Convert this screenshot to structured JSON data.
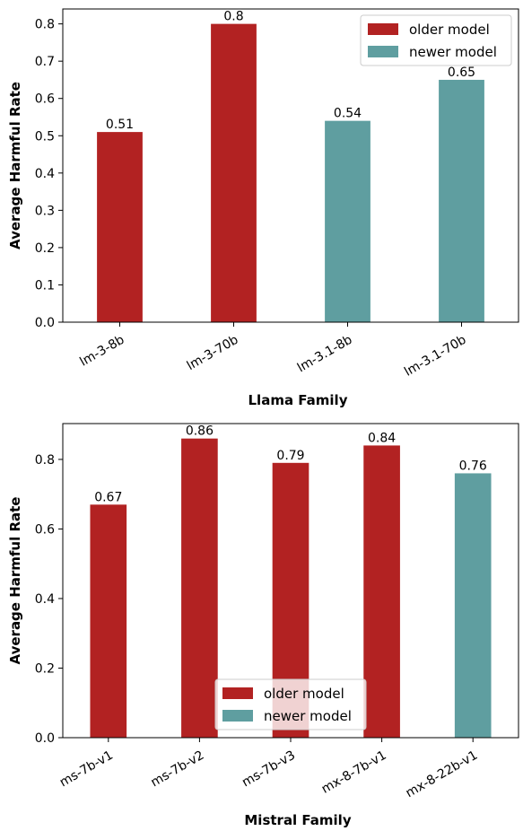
{
  "colors": {
    "older": "#b22222",
    "newer": "#5f9ea0"
  },
  "chart_data": [
    {
      "type": "bar",
      "categories": [
        "lm-3-8b",
        "lm-3-70b",
        "lm-3.1-8b",
        "lm-3.1-70b"
      ],
      "values": [
        0.51,
        0.8,
        0.54,
        0.65
      ],
      "value_labels": [
        "0.51",
        "0.8",
        "0.54",
        "0.65"
      ],
      "groups": [
        "older",
        "older",
        "newer",
        "newer"
      ],
      "ylabel": "Average Harmful Rate",
      "xlabel": "Llama Family",
      "ylim": [
        0,
        0.84
      ],
      "yticks": [
        "0.0",
        "0.1",
        "0.2",
        "0.3",
        "0.4",
        "0.5",
        "0.6",
        "0.7",
        "0.8"
      ],
      "legend": {
        "placement": "top-right",
        "entries": [
          "older model",
          "newer model"
        ]
      }
    },
    {
      "type": "bar",
      "categories": [
        "ms-7b-v1",
        "ms-7b-v2",
        "ms-7b-v3",
        "mx-8-7b-v1",
        "mx-8-22b-v1"
      ],
      "values": [
        0.67,
        0.86,
        0.79,
        0.84,
        0.76
      ],
      "value_labels": [
        "0.67",
        "0.86",
        "0.79",
        "0.84",
        "0.76"
      ],
      "groups": [
        "older",
        "older",
        "older",
        "older",
        "newer"
      ],
      "ylabel": "Average Harmful Rate",
      "xlabel": "Mistral Family",
      "ylim": [
        0,
        0.903
      ],
      "yticks": [
        "0.0",
        "0.2",
        "0.4",
        "0.6",
        "0.8"
      ],
      "legend": {
        "placement": "bottom-center",
        "entries": [
          "older model",
          "newer model"
        ]
      }
    }
  ]
}
